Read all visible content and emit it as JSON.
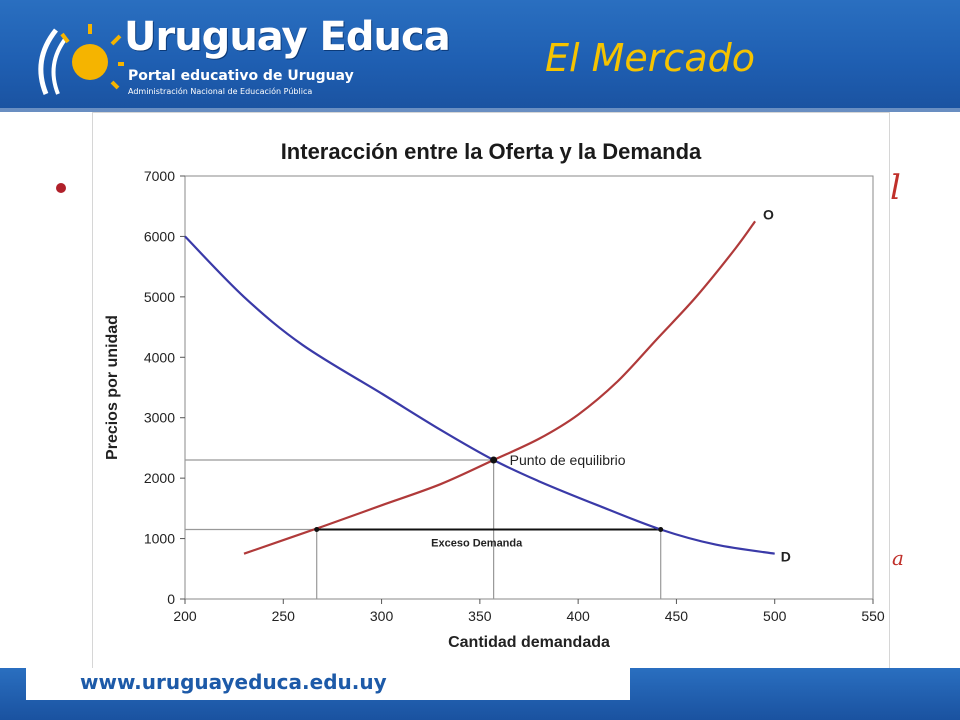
{
  "header": {
    "logo_title": "Uruguay Educa",
    "logo_subtitle": "Portal educativo de Uruguay",
    "logo_subtitle2": "Administración Nacional de Educación Pública",
    "slide_title": "El Mercado"
  },
  "slide": {
    "edge_fragment_top": "l",
    "edge_fragment_bottom": "a"
  },
  "footer": {
    "url": "www.uruguayeduca.edu.uy"
  },
  "colors": {
    "header_blue": "#1f5fb2",
    "title_yellow": "#f5c300",
    "supply_red": "#b03a3a",
    "demand_blue": "#3a3aa8",
    "bullet_red": "#b0202a"
  },
  "chart_data": {
    "type": "line",
    "title": "Interacción entre la Oferta y la Demanda",
    "xlabel": "Cantidad demandada",
    "ylabel": "Precios por unidad",
    "xlim": [
      200,
      550
    ],
    "ylim": [
      0,
      7000
    ],
    "x_ticks": [
      200,
      250,
      300,
      350,
      400,
      450,
      500,
      550
    ],
    "y_ticks": [
      0,
      1000,
      2000,
      3000,
      4000,
      5000,
      6000,
      7000
    ],
    "grid": false,
    "series": [
      {
        "name": "O",
        "color": "#b03a3a",
        "points": [
          [
            230,
            750
          ],
          [
            270,
            1200
          ],
          [
            300,
            1550
          ],
          [
            330,
            1900
          ],
          [
            357,
            2300
          ],
          [
            380,
            2650
          ],
          [
            400,
            3050
          ],
          [
            420,
            3600
          ],
          [
            440,
            4300
          ],
          [
            460,
            5000
          ],
          [
            480,
            5800
          ],
          [
            490,
            6250
          ]
        ]
      },
      {
        "name": "D",
        "color": "#3a3aa8",
        "points": [
          [
            200,
            6000
          ],
          [
            230,
            5000
          ],
          [
            260,
            4200
          ],
          [
            300,
            3400
          ],
          [
            330,
            2800
          ],
          [
            357,
            2300
          ],
          [
            380,
            1950
          ],
          [
            410,
            1550
          ],
          [
            442,
            1150
          ],
          [
            470,
            900
          ],
          [
            500,
            750
          ]
        ]
      }
    ],
    "annotations": [
      {
        "label": "Punto de equilibrio",
        "x": 357,
        "y": 2300,
        "guide_price": 2300
      },
      {
        "label": "Exceso Demanda",
        "x1": 267,
        "x2": 442,
        "y": 1150
      }
    ]
  }
}
